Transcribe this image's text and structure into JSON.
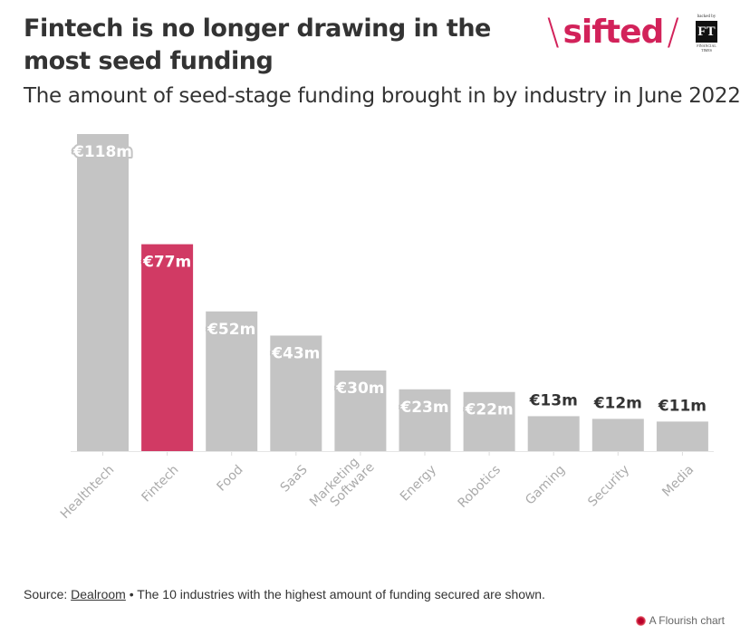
{
  "header": {
    "title": "Fintech is no longer drawing in the most seed funding",
    "subtitle": "The amount of seed-stage funding brought in by industry in June 2022"
  },
  "branding": {
    "logo_text": "sifted",
    "logo_slash_left": "\\",
    "logo_slash_right": "/",
    "backed_by": "backed by",
    "ft_mark": "FT",
    "ft_name": "FINANCIAL TIMES",
    "brand_color": "#d2225a"
  },
  "chart_data": {
    "type": "bar",
    "title": "Fintech is no longer drawing in the most seed funding",
    "subtitle": "The amount of seed-stage funding brought in by industry in June 2022",
    "xlabel": "",
    "ylabel": "",
    "unit_prefix": "€",
    "unit_suffix": "m",
    "categories": [
      "Healthtech",
      "Fintech",
      "Food",
      "SaaS",
      "Marketing Software",
      "Energy",
      "Robotics",
      "Gaming",
      "Security",
      "Media"
    ],
    "category_lines": [
      [
        "Healthtech"
      ],
      [
        "Fintech"
      ],
      [
        "Food"
      ],
      [
        "SaaS"
      ],
      [
        "Marketing",
        "Software"
      ],
      [
        "Energy"
      ],
      [
        "Robotics"
      ],
      [
        "Gaming"
      ],
      [
        "Security"
      ],
      [
        "Media"
      ]
    ],
    "values": [
      118,
      77,
      52,
      43,
      30,
      23,
      22,
      13,
      12,
      11
    ],
    "data_labels": [
      "€118m",
      "€77m",
      "€52m",
      "€43m",
      "€30m",
      "€23m",
      "€22m",
      "€13m",
      "€12m",
      "€11m"
    ],
    "highlight": "Fintech",
    "colors": {
      "default": "#c4c4c4",
      "highlight": "#d13a64",
      "label_outside": "#333333",
      "label_inside": "#ffffff",
      "axis_label": "#aaaaaa"
    },
    "ylim": [
      0,
      118
    ],
    "grid": false,
    "legend": "none"
  },
  "footer": {
    "source_prefix": "Source: ",
    "source_link": "Dealroom",
    "note": " • The 10 industries with the highest amount of funding secured are shown.",
    "credit": "A Flourish chart"
  }
}
